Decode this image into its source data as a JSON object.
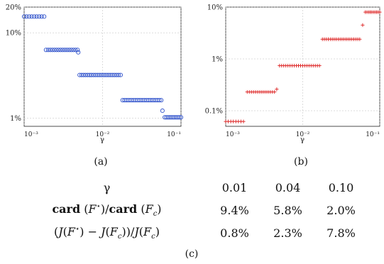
{
  "panel_a_caption": "(a)",
  "panel_b_caption": "(b)",
  "panel_c_caption": "(c)",
  "table": {
    "header_symbol": "γ",
    "gammas": [
      "0.01",
      "0.04",
      "0.10"
    ],
    "row1_label": {
      "card1": "card",
      "F1": "F",
      "sup": "⋆",
      "slash": "/",
      "card2": "card",
      "F2": "F",
      "sub": "c"
    },
    "row1_values": [
      "9.4%",
      "5.8%",
      "2.0%"
    ],
    "row2_label": {
      "open": "(",
      "J1": "J",
      "F1": "F",
      "sup": "⋆",
      "minus": "−",
      "J2": "J",
      "F2": "F",
      "sub2": "c",
      "close": "))/",
      "J3": "J",
      "F3": "F",
      "sub3": "c"
    },
    "row2_values": [
      "0.8%",
      "2.3%",
      "7.8%"
    ]
  },
  "chart_data": [
    {
      "type": "scatter",
      "marker": "circle",
      "color": "#3355cc",
      "xlabel": "γ",
      "ylabel": "",
      "xscale": "log",
      "yscale": "log",
      "xlim": [
        0.001,
        0.1
      ],
      "ylim": [
        0.8,
        20
      ],
      "xtick_labels": [
        "10⁻³",
        "10⁻²",
        "10⁻¹"
      ],
      "ytick_labels": [
        "1%",
        "10%",
        "20%"
      ],
      "series": [
        {
          "segments": [
            {
              "x_from": 0.001,
              "x_to": 0.0018,
              "y": 15.5,
              "count": 9
            },
            {
              "x_from": 0.0019,
              "x_to": 0.0048,
              "y": 6.3,
              "count": 16
            },
            {
              "x_from": 0.0049,
              "x_to": 0.005,
              "y": 5.9,
              "count": 1
            },
            {
              "x_from": 0.0051,
              "x_to": 0.017,
              "y": 3.2,
              "count": 22
            },
            {
              "x_from": 0.018,
              "x_to": 0.056,
              "y": 1.62,
              "count": 22
            },
            {
              "x_from": 0.058,
              "x_to": 0.058,
              "y": 1.22,
              "count": 1
            },
            {
              "x_from": 0.062,
              "x_to": 0.1,
              "y": 1.02,
              "count": 11
            }
          ]
        }
      ]
    },
    {
      "type": "scatter",
      "marker": "plus",
      "color": "#dd2222",
      "xlabel": "γ",
      "ylabel": "",
      "xscale": "log",
      "yscale": "log",
      "xlim": [
        0.001,
        0.1
      ],
      "ylim": [
        0.05,
        10
      ],
      "xtick_labels": [
        "10⁻³",
        "10⁻²",
        "10⁻¹"
      ],
      "ytick_labels": [
        "0.1%",
        "1%",
        "10%"
      ],
      "series": [
        {
          "segments": [
            {
              "x_from": 0.001,
              "x_to": 0.0017,
              "y": 0.062,
              "count": 8
            },
            {
              "x_from": 0.0019,
              "x_to": 0.0043,
              "y": 0.23,
              "count": 14
            },
            {
              "x_from": 0.0046,
              "x_to": 0.0046,
              "y": 0.26,
              "count": 1
            },
            {
              "x_from": 0.005,
              "x_to": 0.0165,
              "y": 0.74,
              "count": 20
            },
            {
              "x_from": 0.018,
              "x_to": 0.055,
              "y": 2.4,
              "count": 20
            },
            {
              "x_from": 0.06,
              "x_to": 0.06,
              "y": 4.5,
              "count": 1
            },
            {
              "x_from": 0.065,
              "x_to": 0.1,
              "y": 8.0,
              "count": 10
            }
          ]
        }
      ]
    }
  ]
}
